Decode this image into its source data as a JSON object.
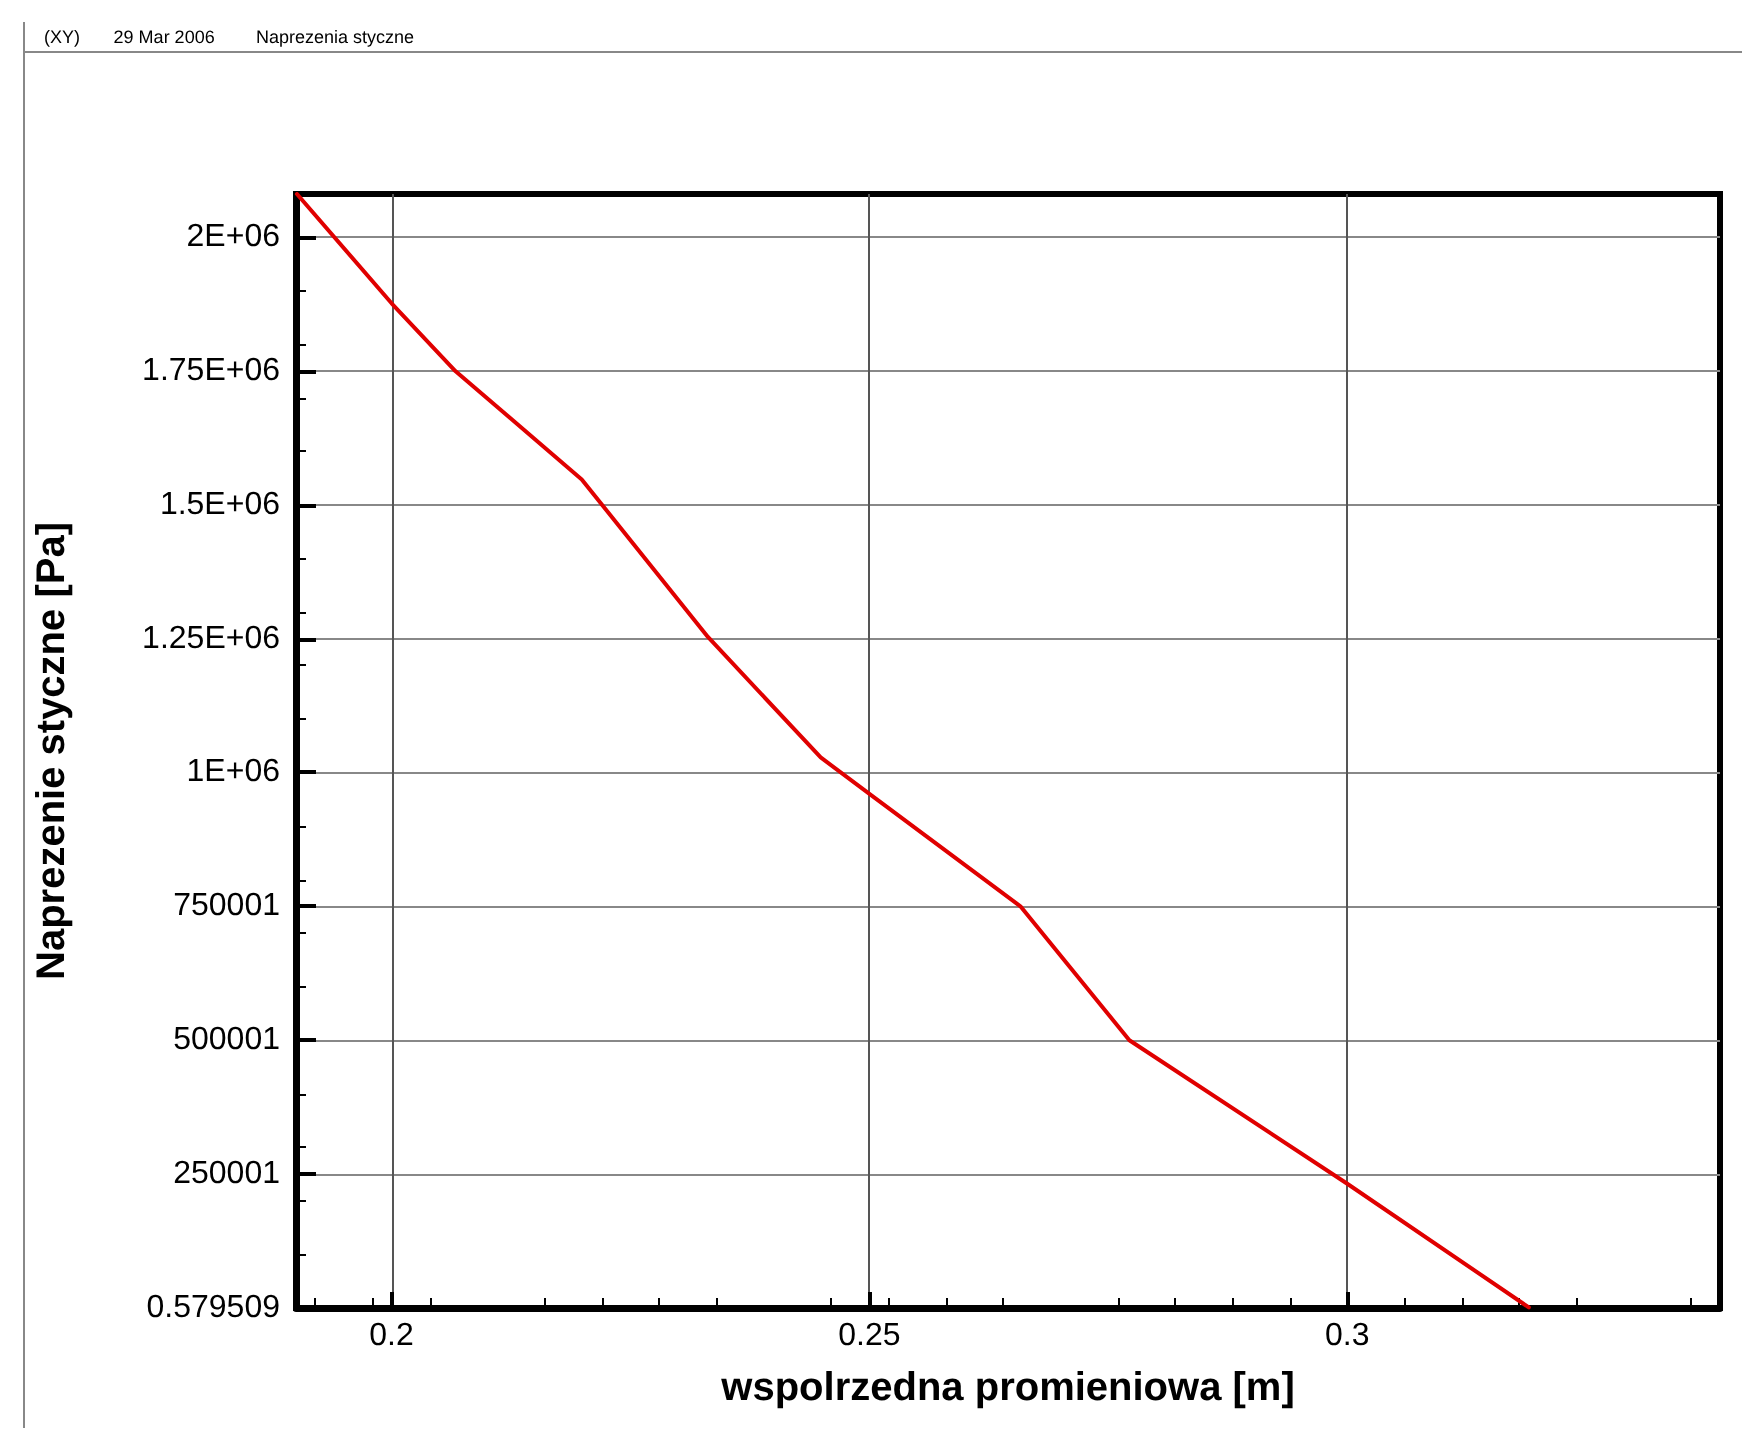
{
  "chart_data": {
    "type": "line",
    "xlabel": "wspolrzedna promieniowa [m]",
    "ylabel": "Naprezenie styczne [Pa]",
    "annotations": [
      "(XY)",
      "29 Mar 2006",
      "Naprezenia styczne"
    ],
    "x": [
      0.1901,
      0.2,
      0.2067,
      0.2199,
      0.2331,
      0.2449,
      0.25,
      0.2658,
      0.2772,
      0.3,
      0.319
    ],
    "series": [
      {
        "color": "#e00000",
        "values": [
          2080000,
          1876000,
          1749000,
          1547000,
          1253000,
          1028000,
          960000,
          750000,
          500000,
          232000,
          1000
        ]
      }
    ],
    "xlim": [
      0.19,
      0.339
    ],
    "xticks": [
      0.2,
      0.25,
      0.3
    ],
    "ylim": [
      0.579509,
      2080000
    ],
    "yticks": [
      {
        "value": 0.579509,
        "label": "0.579509"
      },
      250001,
      500001,
      750001,
      {
        "value": 1000000,
        "label": "1E+06"
      },
      {
        "value": 1250000,
        "label": "1.25E+06"
      },
      {
        "value": 1500000,
        "label": "1.5E+06"
      },
      {
        "value": 1750000,
        "label": "1.75E+06"
      },
      {
        "value": 2000000,
        "label": "2E+06"
      }
    ],
    "grid": true,
    "marker": "none",
    "line_style": "solid"
  }
}
